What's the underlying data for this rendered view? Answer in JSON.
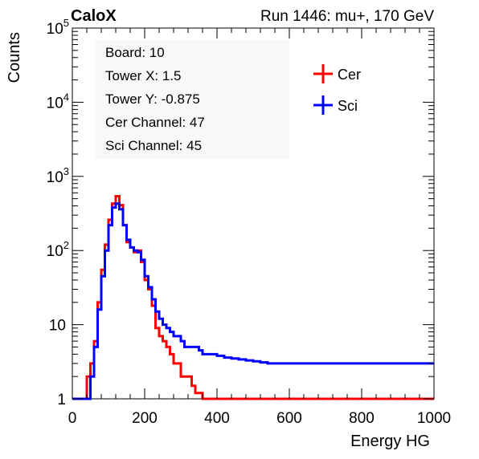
{
  "header": {
    "brand": "CaloX",
    "run_label": "Run 1446: mu+, 170 GeV"
  },
  "info_box": {
    "lines": [
      "Board: 10",
      "Tower X: 1.5",
      "Tower Y: -0.875",
      "Cer Channel: 47",
      "Sci Channel: 45"
    ]
  },
  "colors": {
    "cer": "#ff0000",
    "sci": "#0000ff",
    "frame": "#000000",
    "background": "#ffffff"
  },
  "chart_data": {
    "type": "line",
    "step": true,
    "xlabel": "Energy HG",
    "ylabel": "Counts",
    "xlim": [
      0,
      1000
    ],
    "ylim": [
      1,
      100000
    ],
    "y_scale": "log",
    "grid": false,
    "legend_position": "top-right",
    "x_ticks": [
      "0",
      "200",
      "400",
      "600",
      "800",
      "1000"
    ],
    "y_ticks": [
      {
        "base": "1",
        "exp": ""
      },
      {
        "base": "10",
        "exp": ""
      },
      {
        "base": "10",
        "exp": "2"
      },
      {
        "base": "10",
        "exp": "3"
      },
      {
        "base": "10",
        "exp": "4"
      },
      {
        "base": "10",
        "exp": "5"
      }
    ],
    "x_bin_starts": [
      0,
      25,
      40,
      50,
      60,
      70,
      80,
      90,
      100,
      110,
      120,
      130,
      140,
      150,
      160,
      170,
      180,
      190,
      200,
      210,
      220,
      230,
      240,
      250,
      260,
      270,
      280,
      290,
      300,
      310,
      320,
      330,
      340,
      350,
      360,
      380,
      400,
      420,
      440,
      460,
      480,
      500,
      520,
      540,
      560,
      580,
      600,
      650,
      700,
      750,
      800,
      850,
      900,
      950
    ],
    "x_bin_end": 1000,
    "series": [
      {
        "name": "Cer",
        "values": [
          1,
          1,
          2,
          3,
          6,
          20,
          55,
          120,
          260,
          430,
          540,
          410,
          220,
          130,
          110,
          95,
          100,
          70,
          40,
          30,
          18,
          9,
          7,
          6,
          5,
          4,
          3,
          3,
          2,
          2,
          2,
          1.5,
          1.2,
          1.2,
          1,
          1,
          1,
          1,
          1,
          1,
          1,
          1,
          1,
          1,
          1,
          1,
          1,
          1,
          1,
          1,
          1,
          1,
          1,
          1
        ]
      },
      {
        "name": "Sci",
        "values": [
          1,
          1,
          1,
          2,
          5,
          16,
          45,
          100,
          220,
          380,
          430,
          360,
          220,
          140,
          110,
          100,
          95,
          75,
          45,
          32,
          22,
          15,
          12,
          10,
          9,
          8,
          7,
          7,
          6,
          5,
          5,
          5,
          5,
          4.5,
          4,
          4,
          3.8,
          3.6,
          3.5,
          3.4,
          3.3,
          3.2,
          3.1,
          3,
          3,
          3,
          3,
          3,
          3,
          3,
          3,
          3,
          3,
          3
        ]
      }
    ]
  }
}
